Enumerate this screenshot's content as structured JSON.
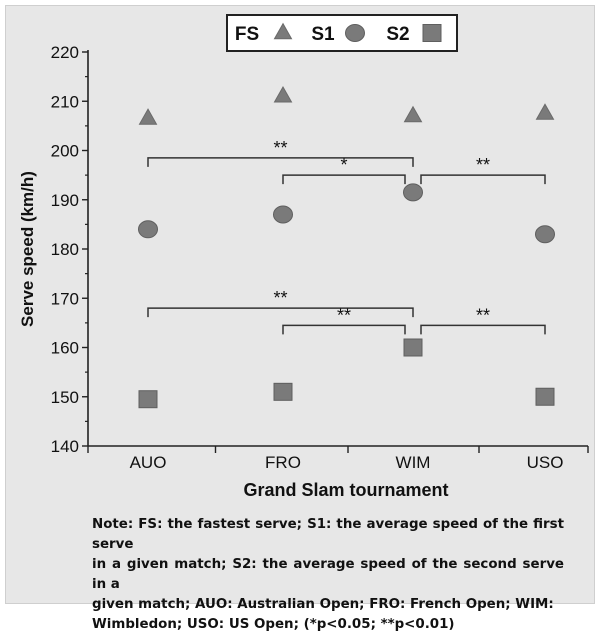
{
  "chart_data": {
    "type": "scatter",
    "xlabel": "Grand Slam tournament",
    "ylabel": "Serve speed (km/h)",
    "categories": [
      "AUO",
      "FRO",
      "WIM",
      "USO"
    ],
    "ylim": [
      140,
      220
    ],
    "yticks": [
      "140",
      "150",
      "160",
      "170",
      "180",
      "190",
      "200",
      "210",
      "220"
    ],
    "series": [
      {
        "name": "FS",
        "marker": "triangle",
        "values": [
          206.5,
          211,
          207,
          207.5
        ]
      },
      {
        "name": "S1",
        "marker": "circle",
        "values": [
          184,
          187,
          191.5,
          183
        ]
      },
      {
        "name": "S2",
        "marker": "square",
        "values": [
          149.5,
          151,
          160,
          150
        ]
      }
    ],
    "legend": {
      "position": "top-center"
    },
    "annotations": [
      {
        "from": "AUO",
        "to": "WIM",
        "y": 198.5,
        "label": "**"
      },
      {
        "from": "FRO",
        "to": "WIM",
        "y": 195,
        "label": "*"
      },
      {
        "from": "WIM",
        "to": "USO",
        "y": 195,
        "label": "**"
      },
      {
        "from": "AUO",
        "to": "WIM",
        "y": 168,
        "label": "**"
      },
      {
        "from": "FRO",
        "to": "WIM",
        "y": 164.5,
        "label": "**"
      },
      {
        "from": "WIM",
        "to": "USO",
        "y": 164.5,
        "label": "**"
      }
    ],
    "colors": {
      "marker": "#7a7a7a",
      "text": "#111111",
      "axis": "#222222"
    }
  },
  "note": {
    "lines": [
      "Note: FS: the fastest serve; S1: the average speed of the first serve",
      "in a given match; S2: the average speed of the second serve in a",
      "given match; AUO: Australian Open; FRO: French Open; WIM:",
      "Wimbledon; USO: US Open; (*p<0.05; **p<0.01)"
    ]
  }
}
